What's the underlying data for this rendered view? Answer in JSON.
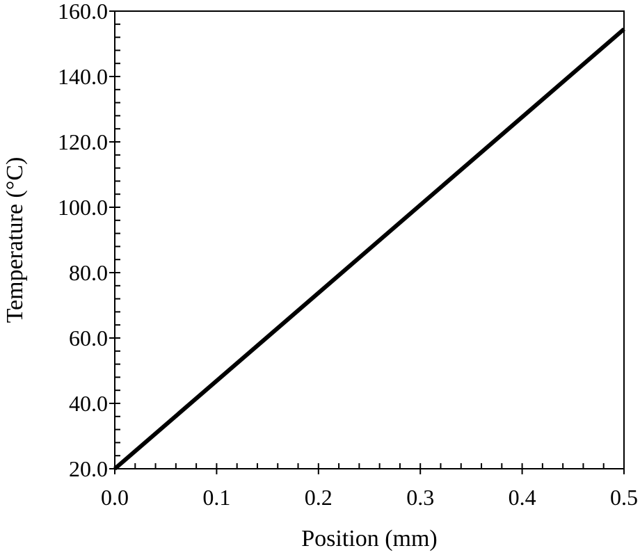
{
  "chart_data": {
    "type": "line",
    "title": "",
    "xlabel": "Position (mm)",
    "ylabel": "Temperature (°C)",
    "xlim": [
      0.0,
      0.5
    ],
    "ylim": [
      20.0,
      160.0
    ],
    "x_ticks": [
      0.0,
      0.1,
      0.2,
      0.3,
      0.4,
      0.5
    ],
    "x_tick_labels": [
      "0.0",
      "0.1",
      "0.2",
      "0.3",
      "0.4",
      "0.5"
    ],
    "y_ticks": [
      20,
      40,
      60,
      80,
      100,
      120,
      140,
      160
    ],
    "y_tick_labels": [
      "20.0",
      "40.0",
      "60.0",
      "80.0",
      "100.0",
      "120.0",
      "140.0",
      "160.0"
    ],
    "x_minor_step": 0.02,
    "y_minor_step": 4,
    "grid": false,
    "legend": "none",
    "line_color": "#000000",
    "series": [
      {
        "x": [
          0.0,
          0.5
        ],
        "y": [
          20.0,
          154.5
        ]
      }
    ]
  }
}
